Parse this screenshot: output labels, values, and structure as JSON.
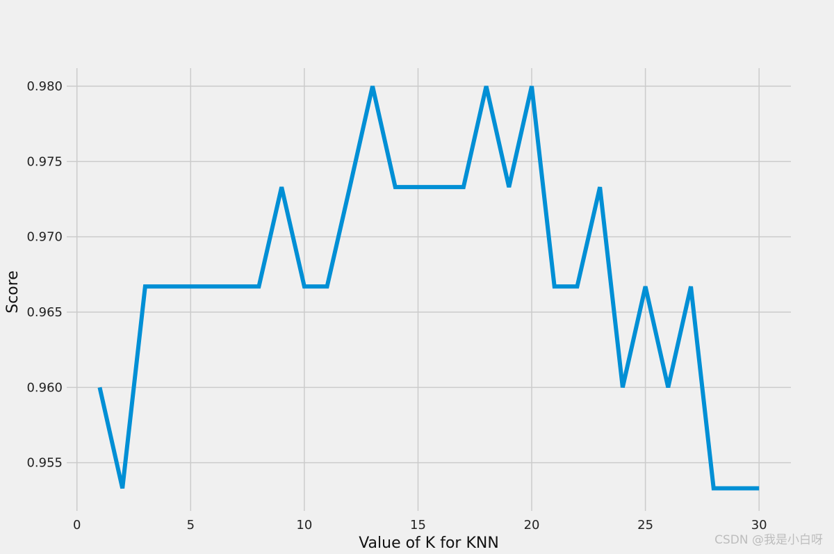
{
  "chart_data": {
    "type": "line",
    "title": "",
    "xlabel": "Value of K for KNN",
    "ylabel": "Score",
    "xlim": [
      -0.45,
      31.4
    ],
    "ylim": [
      0.9518,
      0.9812
    ],
    "xticks": [
      0,
      5,
      10,
      15,
      20,
      25,
      30
    ],
    "yticks": [
      0.955,
      0.96,
      0.965,
      0.97,
      0.975,
      0.98
    ],
    "ytick_labels": [
      "0.955",
      "0.960",
      "0.965",
      "0.970",
      "0.975",
      "0.980"
    ],
    "grid": true,
    "line_color": "#008fd5",
    "series": [
      {
        "x": [
          1,
          2,
          3,
          4,
          5,
          6,
          7,
          8,
          9,
          10,
          11,
          12,
          13,
          14,
          15,
          16,
          17,
          18,
          19,
          20,
          21,
          22,
          23,
          24,
          25,
          26,
          27,
          28,
          29,
          30
        ],
        "values": [
          0.96,
          0.9533,
          0.9667,
          0.9667,
          0.9667,
          0.9667,
          0.9667,
          0.9667,
          0.9733,
          0.9667,
          0.9667,
          0.9733,
          0.98,
          0.9733,
          0.9733,
          0.9733,
          0.9733,
          0.98,
          0.9733,
          0.98,
          0.9667,
          0.9667,
          0.9733,
          0.96,
          0.9667,
          0.96,
          0.9667,
          0.9533,
          0.9533,
          0.9533
        ]
      }
    ]
  },
  "watermark": "CSDN @我是小白呀"
}
